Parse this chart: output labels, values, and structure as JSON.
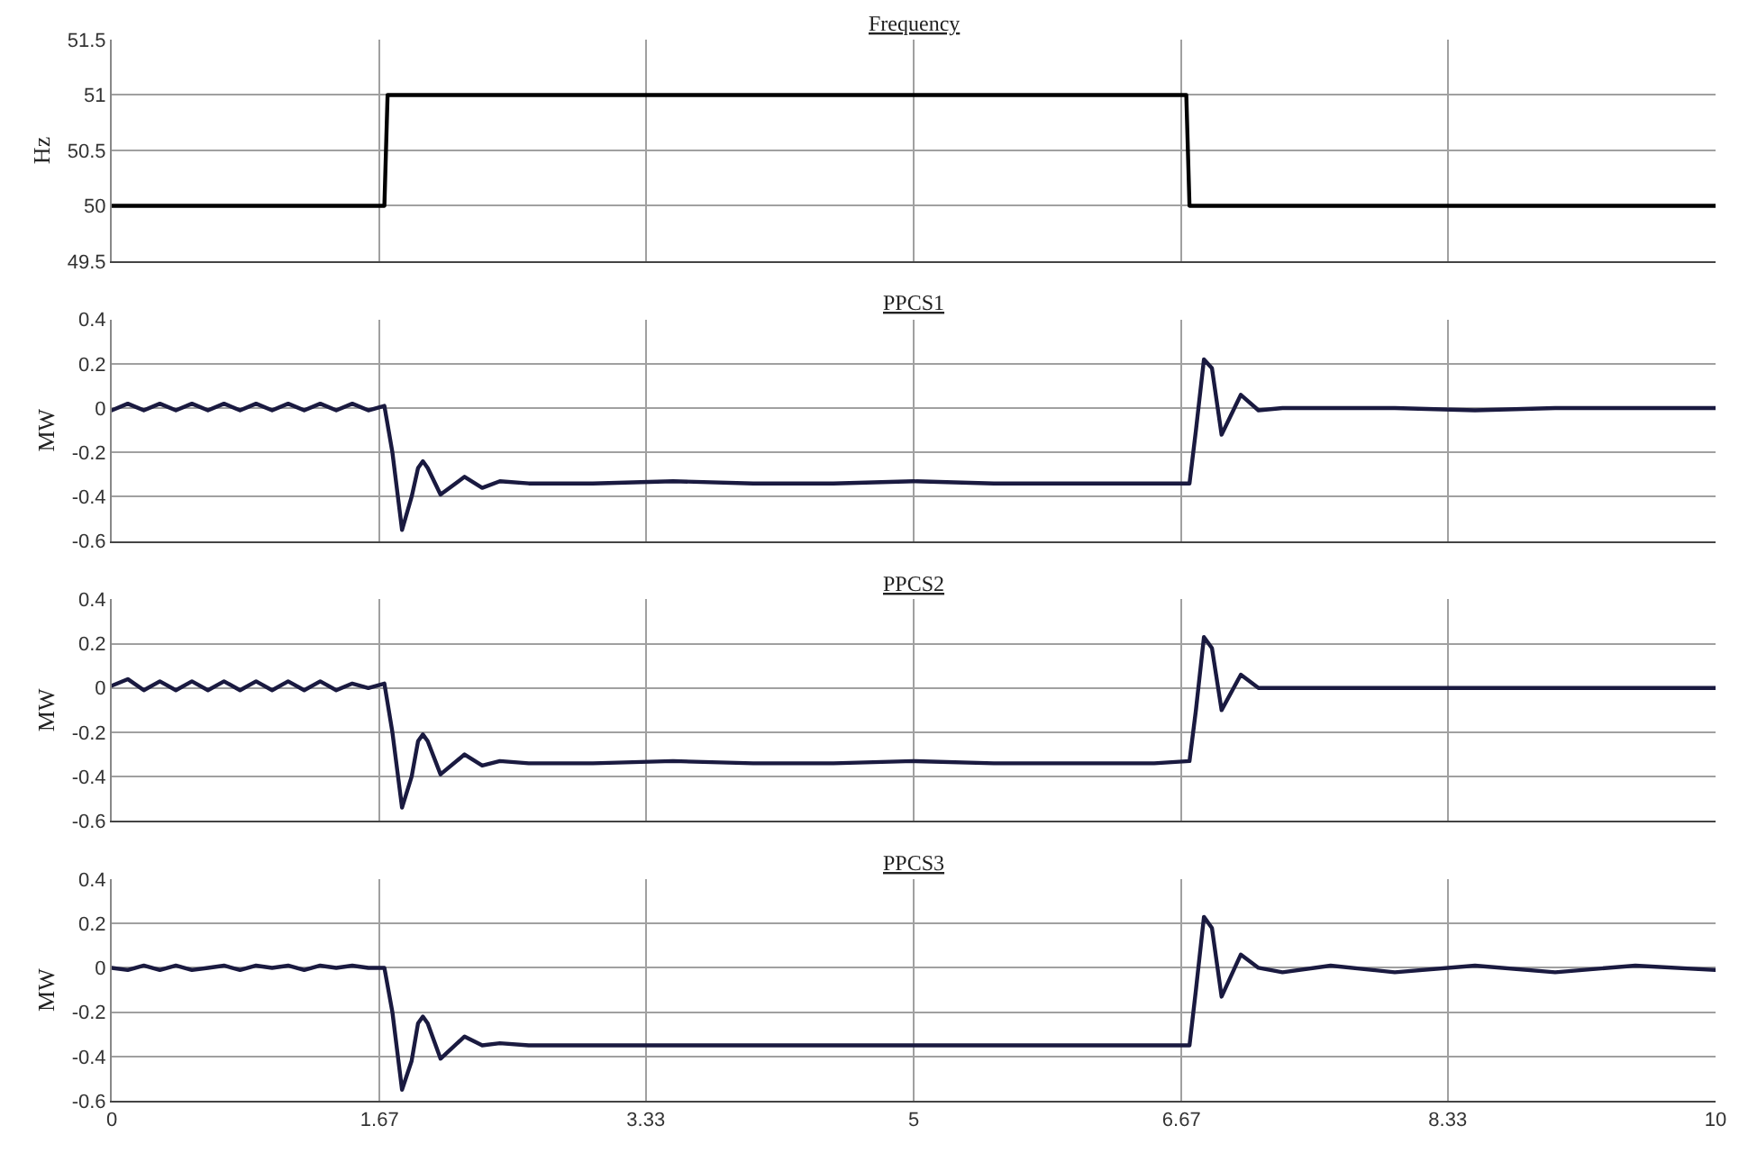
{
  "chart_data": [
    {
      "type": "line",
      "title": "Frequency",
      "ylabel": "Hz",
      "x": [
        0,
        1.7,
        1.72,
        6.7,
        6.72,
        10
      ],
      "series": [
        {
          "color": "#000000",
          "values": [
            50,
            50,
            51,
            51,
            50,
            50
          ]
        }
      ],
      "xlim": [
        0,
        10
      ],
      "xticks": [
        0,
        1.67,
        3.33,
        5,
        6.67,
        8.33,
        10
      ],
      "ylim": [
        49.5,
        51.5
      ],
      "yticks": [
        49.5,
        50,
        50.5,
        51,
        51.5
      ],
      "grid": true,
      "tick_labels": "y"
    },
    {
      "type": "line",
      "title": "PPCS1",
      "ylabel": "MW",
      "x": [
        0,
        0.1,
        0.2,
        0.3,
        0.4,
        0.5,
        0.6,
        0.7,
        0.8,
        0.9,
        1.0,
        1.1,
        1.2,
        1.3,
        1.4,
        1.5,
        1.6,
        1.7,
        1.75,
        1.81,
        1.87,
        1.91,
        1.94,
        1.97,
        2.05,
        2.2,
        2.31,
        2.42,
        2.6,
        3.0,
        3.5,
        4.0,
        4.5,
        5.0,
        5.5,
        6.0,
        6.5,
        6.72,
        6.76,
        6.81,
        6.86,
        6.92,
        7.04,
        7.15,
        7.3,
        7.6,
        8.0,
        8.5,
        9.0,
        9.5,
        10
      ],
      "series": [
        {
          "color": "#1a1a40",
          "values": [
            -0.01,
            0.02,
            -0.01,
            0.02,
            -0.01,
            0.02,
            -0.01,
            0.02,
            -0.01,
            0.02,
            -0.01,
            0.02,
            -0.01,
            0.02,
            -0.01,
            0.02,
            -0.01,
            0.01,
            -0.2,
            -0.55,
            -0.4,
            -0.27,
            -0.24,
            -0.27,
            -0.39,
            -0.31,
            -0.36,
            -0.33,
            -0.34,
            -0.34,
            -0.33,
            -0.34,
            -0.34,
            -0.33,
            -0.34,
            -0.34,
            -0.34,
            -0.34,
            -0.1,
            0.22,
            0.18,
            -0.12,
            0.06,
            -0.01,
            0.0,
            0.0,
            0.0,
            -0.01,
            0.0,
            0.0,
            0.0
          ]
        }
      ],
      "xlim": [
        0,
        10
      ],
      "xticks": [
        0,
        1.67,
        3.33,
        5,
        6.67,
        8.33,
        10
      ],
      "ylim": [
        -0.6,
        0.4
      ],
      "yticks": [
        -0.6,
        -0.4,
        -0.2,
        0,
        0.2,
        0.4
      ],
      "grid": true,
      "tick_labels": "y"
    },
    {
      "type": "line",
      "title": "PPCS2",
      "ylabel": "MW",
      "x": [
        0,
        0.1,
        0.2,
        0.3,
        0.4,
        0.5,
        0.6,
        0.7,
        0.8,
        0.9,
        1.0,
        1.1,
        1.2,
        1.3,
        1.4,
        1.5,
        1.6,
        1.7,
        1.75,
        1.81,
        1.87,
        1.91,
        1.94,
        1.97,
        2.05,
        2.2,
        2.31,
        2.42,
        2.6,
        3.0,
        3.5,
        4.0,
        4.5,
        5.0,
        5.5,
        6.0,
        6.5,
        6.72,
        6.76,
        6.81,
        6.86,
        6.92,
        7.04,
        7.15,
        7.3,
        7.6,
        8.0,
        8.5,
        9.0,
        9.5,
        10
      ],
      "series": [
        {
          "color": "#1a1a40",
          "values": [
            0.01,
            0.04,
            -0.01,
            0.03,
            -0.01,
            0.03,
            -0.01,
            0.03,
            -0.01,
            0.03,
            -0.01,
            0.03,
            -0.01,
            0.03,
            -0.01,
            0.02,
            0.0,
            0.02,
            -0.2,
            -0.54,
            -0.4,
            -0.24,
            -0.21,
            -0.24,
            -0.39,
            -0.3,
            -0.35,
            -0.33,
            -0.34,
            -0.34,
            -0.33,
            -0.34,
            -0.34,
            -0.33,
            -0.34,
            -0.34,
            -0.34,
            -0.33,
            -0.1,
            0.23,
            0.18,
            -0.1,
            0.06,
            0.0,
            0.0,
            0.0,
            0.0,
            0.0,
            0.0,
            0.0,
            0.0
          ]
        }
      ],
      "xlim": [
        0,
        10
      ],
      "xticks": [
        0,
        1.67,
        3.33,
        5,
        6.67,
        8.33,
        10
      ],
      "ylim": [
        -0.6,
        0.4
      ],
      "yticks": [
        -0.6,
        -0.4,
        -0.2,
        0,
        0.2,
        0.4
      ],
      "grid": true,
      "tick_labels": "y"
    },
    {
      "type": "line",
      "title": "PPCS3",
      "ylabel": "MW",
      "x": [
        0,
        0.1,
        0.2,
        0.3,
        0.4,
        0.5,
        0.6,
        0.7,
        0.8,
        0.9,
        1.0,
        1.1,
        1.2,
        1.3,
        1.4,
        1.5,
        1.6,
        1.7,
        1.75,
        1.81,
        1.87,
        1.91,
        1.94,
        1.97,
        2.05,
        2.2,
        2.31,
        2.42,
        2.6,
        3.0,
        3.5,
        4.0,
        4.5,
        5.0,
        5.5,
        6.0,
        6.5,
        6.72,
        6.76,
        6.81,
        6.86,
        6.92,
        7.04,
        7.15,
        7.3,
        7.6,
        8.0,
        8.5,
        9.0,
        9.5,
        10
      ],
      "series": [
        {
          "color": "#1a1a40",
          "values": [
            0.0,
            -0.01,
            0.01,
            -0.01,
            0.01,
            -0.01,
            0.0,
            0.01,
            -0.01,
            0.01,
            0.0,
            0.01,
            -0.01,
            0.01,
            0.0,
            0.01,
            0.0,
            0.0,
            -0.2,
            -0.55,
            -0.42,
            -0.25,
            -0.22,
            -0.25,
            -0.41,
            -0.31,
            -0.35,
            -0.34,
            -0.35,
            -0.35,
            -0.35,
            -0.35,
            -0.35,
            -0.35,
            -0.35,
            -0.35,
            -0.35,
            -0.35,
            -0.1,
            0.23,
            0.18,
            -0.13,
            0.06,
            0.0,
            -0.02,
            0.01,
            -0.02,
            0.01,
            -0.02,
            0.01,
            -0.01
          ]
        }
      ],
      "xlim": [
        0,
        10
      ],
      "xticks": [
        0,
        1.67,
        3.33,
        5,
        6.67,
        8.33,
        10
      ],
      "ylim": [
        -0.6,
        0.4
      ],
      "yticks": [
        -0.6,
        -0.4,
        -0.2,
        0,
        0.2,
        0.4
      ],
      "grid": true
    }
  ]
}
